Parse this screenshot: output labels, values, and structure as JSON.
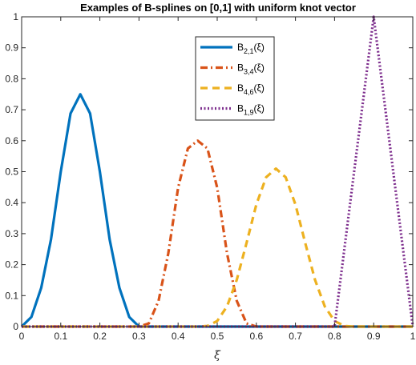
{
  "chart_data": {
    "type": "line",
    "title": "Examples of B-splines on [0,1] with uniform knot vector",
    "xlabel": "ξ",
    "ylabel": "",
    "xlim": [
      0,
      1
    ],
    "ylim": [
      0,
      1
    ],
    "x_ticks": [
      0,
      0.1,
      0.2,
      0.3,
      0.4,
      0.5,
      0.6,
      0.7,
      0.8,
      0.9,
      1
    ],
    "x_tick_labels": [
      "0",
      "0.1",
      "0.2",
      "0.3",
      "0.4",
      "0.5",
      "0.6",
      "0.7",
      "0.8",
      "0.9",
      "1"
    ],
    "y_ticks": [
      0,
      0.1,
      0.2,
      0.3,
      0.4,
      0.5,
      0.6,
      0.7,
      0.8,
      0.9,
      1
    ],
    "y_tick_labels": [
      "0",
      "0.1",
      "0.2",
      "0.3",
      "0.4",
      "0.5",
      "0.6",
      "0.7",
      "0.8",
      "0.9",
      "1"
    ],
    "grid": false,
    "legend_position": "top-center",
    "series": [
      {
        "name": "B2,1(ξ)",
        "label_main": "B",
        "label_sub": "2,1",
        "label_arg": "(ξ)",
        "color": "#0072bd",
        "style": "solid",
        "x": [
          0,
          0.025,
          0.05,
          0.075,
          0.1,
          0.125,
          0.15,
          0.175,
          0.2,
          0.225,
          0.25,
          0.275,
          0.3,
          1
        ],
        "y": [
          0,
          0.031,
          0.125,
          0.281,
          0.5,
          0.688,
          0.75,
          0.688,
          0.5,
          0.281,
          0.125,
          0.031,
          0,
          0
        ]
      },
      {
        "name": "B3,4(ξ)",
        "label_main": "B",
        "label_sub": "3,4",
        "label_arg": "(ξ)",
        "color": "#d95319",
        "style": "dashdot",
        "x": [
          0,
          0.3,
          0.325,
          0.35,
          0.375,
          0.4,
          0.425,
          0.45,
          0.475,
          0.5,
          0.525,
          0.55,
          0.575,
          0.6,
          1
        ],
        "y": [
          0,
          0,
          0.01,
          0.083,
          0.237,
          0.448,
          0.575,
          0.6,
          0.575,
          0.448,
          0.237,
          0.083,
          0.01,
          0,
          0
        ]
      },
      {
        "name": "B4,6(ξ)",
        "label_main": "B",
        "label_sub": "4,6",
        "label_arg": "(ξ)",
        "color": "#edb120",
        "style": "dashed",
        "x": [
          0,
          0.45,
          0.475,
          0.5,
          0.525,
          0.55,
          0.575,
          0.6,
          0.625,
          0.65,
          0.675,
          0.7,
          0.725,
          0.75,
          0.775,
          0.8,
          0.825,
          0.85,
          1
        ],
        "y": [
          0,
          0,
          0.002,
          0.018,
          0.065,
          0.151,
          0.27,
          0.394,
          0.482,
          0.51,
          0.482,
          0.394,
          0.27,
          0.151,
          0.065,
          0.018,
          0.002,
          0,
          0
        ]
      },
      {
        "name": "B1,9(ξ)",
        "label_main": "B",
        "label_sub": "1,9",
        "label_arg": "(ξ)",
        "color": "#7e2f8e",
        "style": "dotted",
        "x": [
          0,
          0.8,
          0.9,
          1
        ],
        "y": [
          0,
          0,
          1,
          0
        ]
      }
    ]
  }
}
